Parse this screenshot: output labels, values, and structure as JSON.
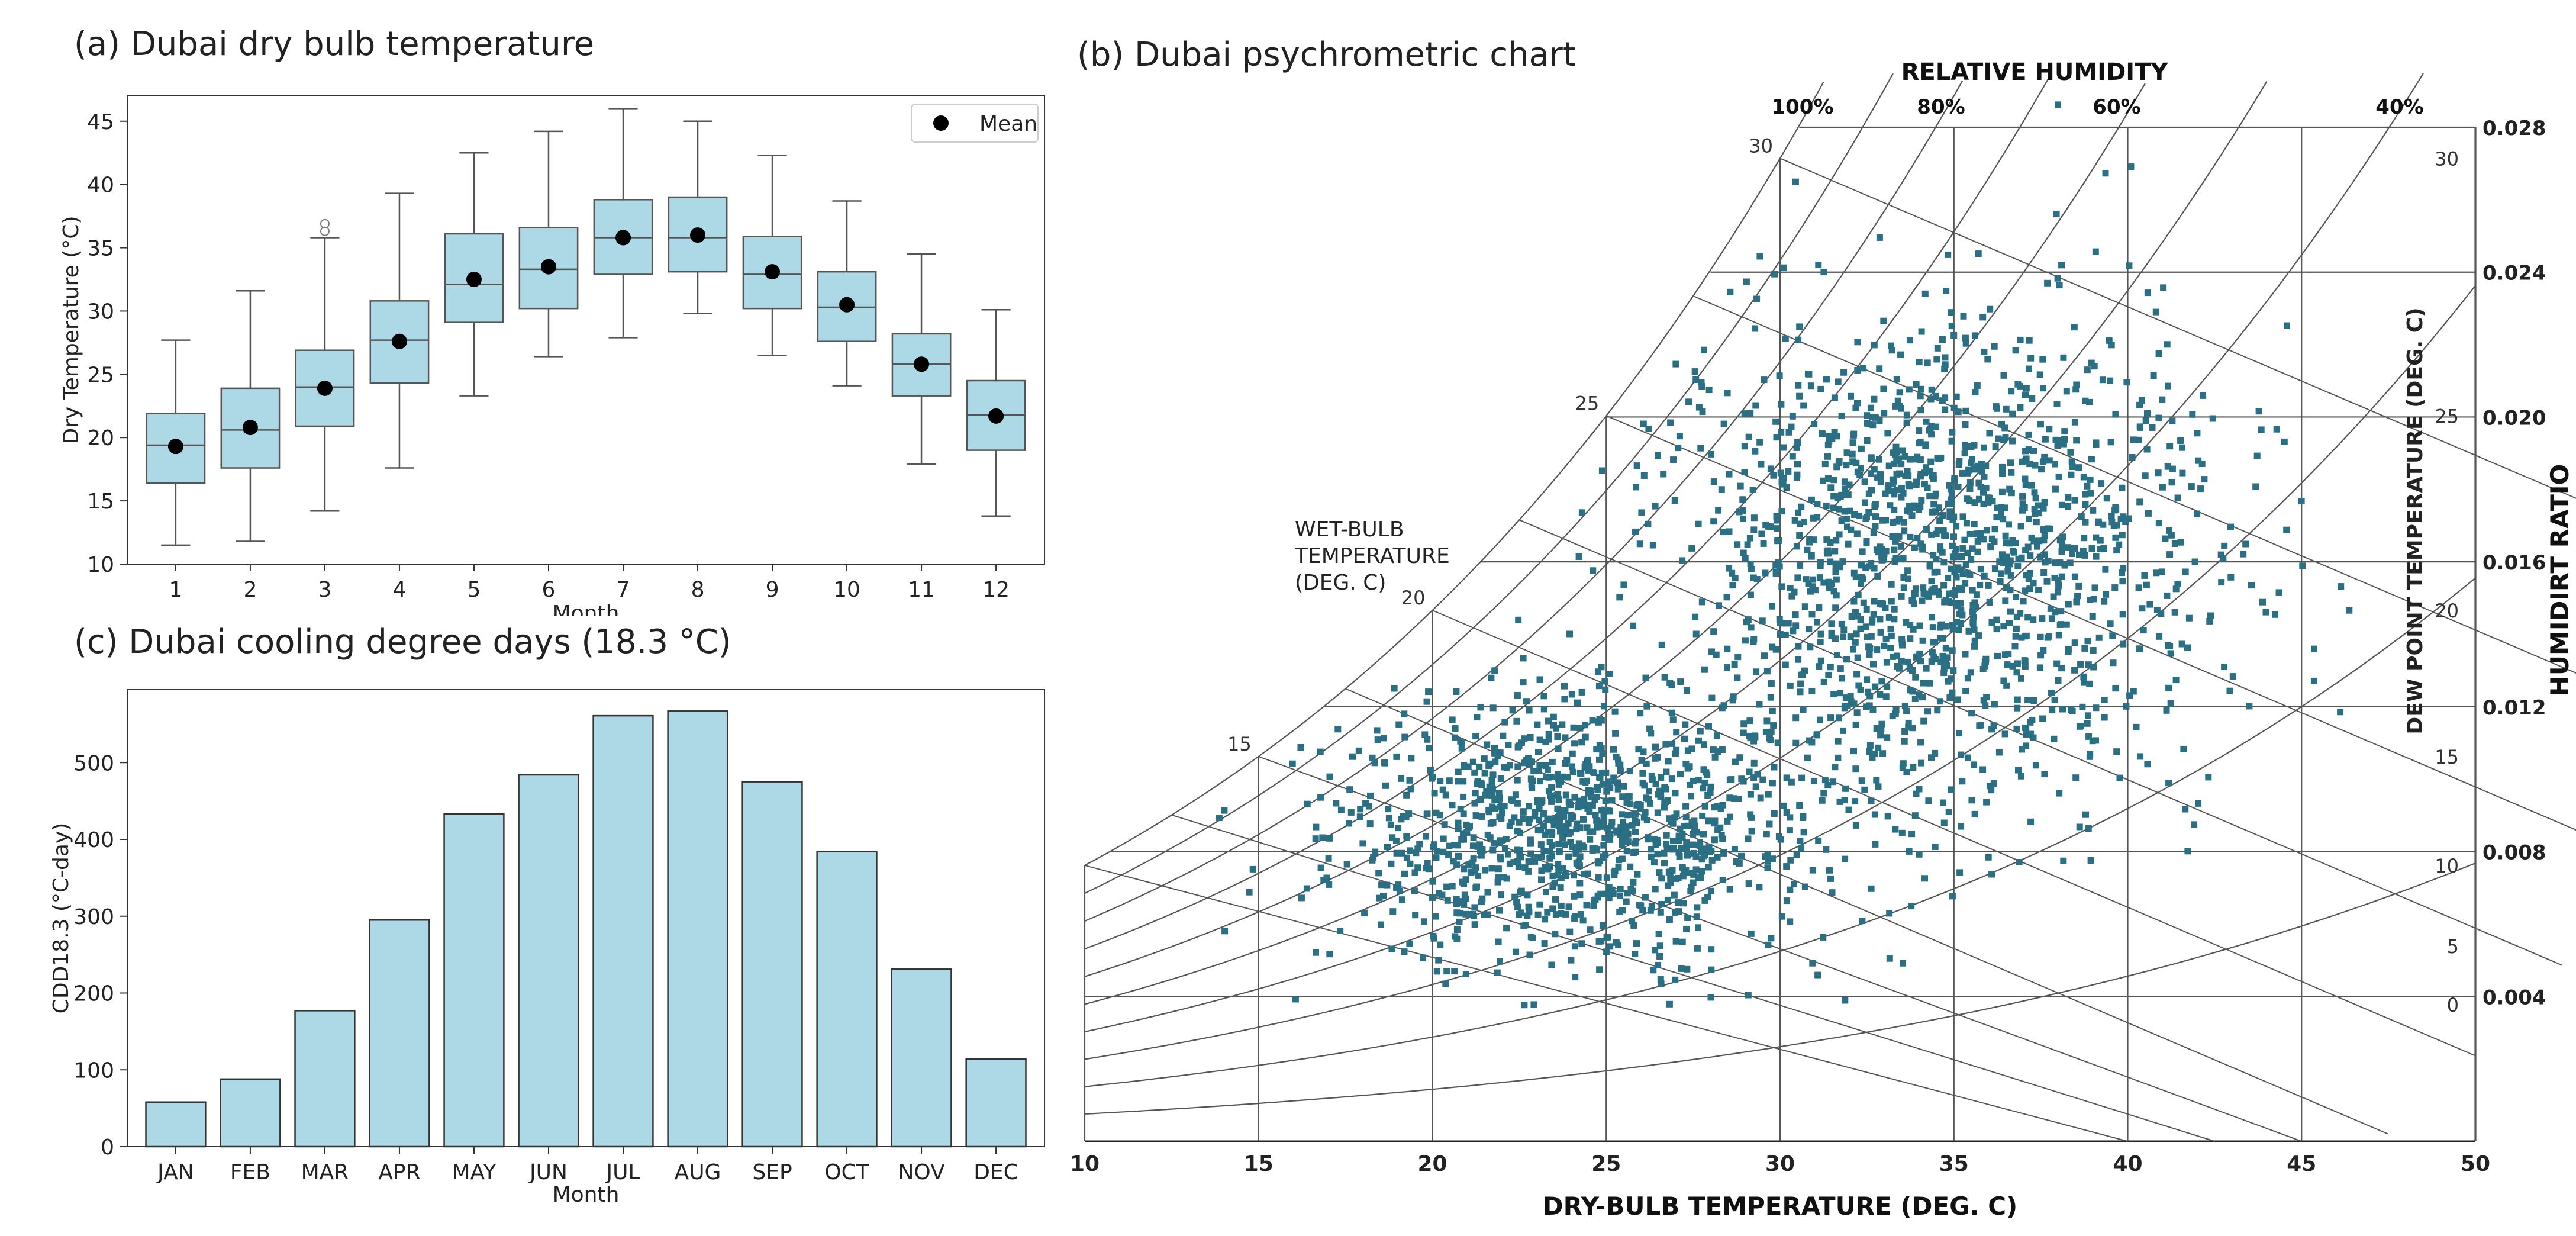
{
  "chart_data": [
    {
      "id": "a",
      "type": "box",
      "title": "(a) Dubai dry bulb temperature",
      "xlabel": "Month",
      "ylabel": "Dry Temperature (°C)",
      "ylim": [
        10,
        47
      ],
      "yticks": [
        10,
        15,
        20,
        25,
        30,
        35,
        40,
        45
      ],
      "categories": [
        "1",
        "2",
        "3",
        "4",
        "5",
        "6",
        "7",
        "8",
        "9",
        "10",
        "11",
        "12"
      ],
      "legend": "Mean",
      "legend_position": "top-right",
      "box_color": "#add8e6",
      "mean_color": "#000000",
      "boxes": [
        {
          "min": 11.5,
          "q1": 16.4,
          "median": 19.4,
          "q3": 21.9,
          "max": 27.7,
          "mean": 19.3,
          "outliers": []
        },
        {
          "min": 11.8,
          "q1": 17.6,
          "median": 20.6,
          "q3": 23.9,
          "max": 31.6,
          "mean": 20.8,
          "outliers": []
        },
        {
          "min": 14.2,
          "q1": 20.9,
          "median": 24.0,
          "q3": 26.9,
          "max": 35.8,
          "mean": 23.9,
          "outliers": [
            36.3,
            36.9
          ]
        },
        {
          "min": 17.6,
          "q1": 24.3,
          "median": 27.7,
          "q3": 30.8,
          "max": 39.3,
          "mean": 27.6,
          "outliers": []
        },
        {
          "min": 23.3,
          "q1": 29.1,
          "median": 32.1,
          "q3": 36.1,
          "max": 42.5,
          "mean": 32.5,
          "outliers": []
        },
        {
          "min": 26.4,
          "q1": 30.2,
          "median": 33.3,
          "q3": 36.6,
          "max": 44.2,
          "mean": 33.5,
          "outliers": []
        },
        {
          "min": 27.9,
          "q1": 32.9,
          "median": 35.8,
          "q3": 38.8,
          "max": 46.0,
          "mean": 35.8,
          "outliers": []
        },
        {
          "min": 29.8,
          "q1": 33.1,
          "median": 35.8,
          "q3": 39.0,
          "max": 45.0,
          "mean": 36.0,
          "outliers": []
        },
        {
          "min": 26.5,
          "q1": 30.2,
          "median": 32.9,
          "q3": 35.9,
          "max": 42.3,
          "mean": 33.1,
          "outliers": []
        },
        {
          "min": 24.1,
          "q1": 27.6,
          "median": 30.3,
          "q3": 33.1,
          "max": 38.7,
          "mean": 30.5,
          "outliers": []
        },
        {
          "min": 17.9,
          "q1": 23.3,
          "median": 25.8,
          "q3": 28.2,
          "max": 34.5,
          "mean": 25.8,
          "outliers": []
        },
        {
          "min": 13.8,
          "q1": 19.0,
          "median": 21.8,
          "q3": 24.5,
          "max": 30.1,
          "mean": 21.7,
          "outliers": []
        }
      ]
    },
    {
      "id": "c",
      "type": "bar",
      "title": "(c) Dubai cooling degree days (18.3 °C)",
      "xlabel": "Month",
      "ylabel": "CDD18.3 (°C-day)",
      "ylim": [
        0,
        595
      ],
      "yticks": [
        0,
        100,
        200,
        300,
        400,
        500
      ],
      "categories": [
        "JAN",
        "FEB",
        "MAR",
        "APR",
        "MAY",
        "JUN",
        "JUL",
        "AUG",
        "SEP",
        "OCT",
        "NOV",
        "DEC"
      ],
      "values": [
        58,
        88,
        177,
        295,
        433,
        484,
        561,
        567,
        475,
        384,
        231,
        114
      ],
      "bar_color": "#add8e6"
    },
    {
      "id": "b",
      "type": "scatter",
      "title": "(b) Dubai psychrometric chart",
      "xlabel": "DRY-BULB TEMPERATURE (DEG. C)",
      "xlim": [
        10,
        50
      ],
      "xticks": [
        10,
        15,
        20,
        25,
        30,
        35,
        40,
        45,
        50
      ],
      "ylim": [
        0,
        0.028
      ],
      "right_axis_label": "HUMIDIRT RATIO",
      "humidity_ratio_ticks": [
        "0.004",
        "0.008",
        "0.012",
        "0.016",
        "0.020",
        "0.024",
        "0.028"
      ],
      "dew_point_label": "DEW POINT TEMPERATURE (DEG. C)",
      "dew_point_ticks": [
        "0",
        "5",
        "10",
        "15",
        "20",
        "25",
        "30"
      ],
      "relative_humidity_label": "RELATIVE HUMIDITY",
      "relative_humidity_ticks": [
        "100%",
        "80%",
        "60%",
        "40%"
      ],
      "wet_bulb_label": [
        "WET-BULB",
        "TEMPERATURE",
        "(DEG. C)"
      ],
      "wet_bulb_ticks": [
        "15",
        "20",
        "25",
        "30"
      ],
      "point_color": "#2a6f84",
      "point_count": 2600,
      "clusters": [
        {
          "dry_bulb_mean": 24.0,
          "dry_bulb_sd": 3.5,
          "humidity_ratio_mean": 0.0085,
          "humidity_ratio_sd": 0.0018,
          "weight": 0.42
        },
        {
          "dry_bulb_mean": 34.5,
          "dry_bulb_sd": 4.0,
          "humidity_ratio_mean": 0.016,
          "humidity_ratio_sd": 0.0033,
          "weight": 0.58
        }
      ]
    }
  ]
}
